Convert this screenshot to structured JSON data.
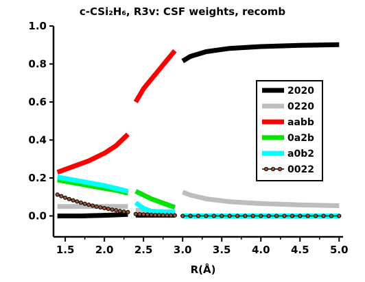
{
  "chart_data": {
    "type": "line",
    "title": "c-CSi₂H₆, R3v: CSF weights, recomb",
    "xlabel": "R(Å)",
    "ylabel": "",
    "xlim": [
      1.35,
      5.05
    ],
    "ylim": [
      -0.11,
      1.0
    ],
    "xticks": [
      1.5,
      2.0,
      2.5,
      3.0,
      3.5,
      4.0,
      4.5,
      5.0
    ],
    "xtick_labels": [
      "1.5",
      "2.0",
      "2.5",
      "3.0",
      "3.5",
      "4.0",
      "4.5",
      "5.0"
    ],
    "yticks": [
      0.0,
      0.2,
      0.4,
      0.6,
      0.8,
      1.0
    ],
    "ytick_labels": [
      "0.0",
      "0.2",
      "0.4",
      "0.6",
      "0.8",
      "1.0"
    ],
    "grid": false,
    "legend_position": "right",
    "series": [
      {
        "name": "2020",
        "color": "#000000",
        "segments": [
          [
            [
              1.4,
              0.0
            ],
            [
              1.7,
              0.0
            ],
            [
              2.0,
              0.003
            ],
            [
              2.3,
              0.008
            ]
          ],
          [
            [
              2.4,
              0.004
            ],
            [
              2.6,
              0.004
            ],
            [
              2.9,
              0.004
            ]
          ],
          [
            [
              3.0,
              0.815
            ],
            [
              3.1,
              0.84
            ],
            [
              3.3,
              0.865
            ],
            [
              3.6,
              0.882
            ],
            [
              4.0,
              0.892
            ],
            [
              4.5,
              0.898
            ],
            [
              5.0,
              0.902
            ]
          ]
        ]
      },
      {
        "name": "0220",
        "color": "#bdbdbd",
        "segments": [
          [
            [
              1.4,
              0.05
            ],
            [
              1.7,
              0.05
            ],
            [
              2.0,
              0.05
            ],
            [
              2.3,
              0.05
            ]
          ],
          [
            [
              2.4,
              0.03
            ],
            [
              2.6,
              0.025
            ],
            [
              2.9,
              0.02
            ]
          ],
          [
            [
              3.0,
              0.125
            ],
            [
              3.1,
              0.11
            ],
            [
              3.3,
              0.09
            ],
            [
              3.6,
              0.075
            ],
            [
              4.0,
              0.065
            ],
            [
              4.5,
              0.058
            ],
            [
              5.0,
              0.054
            ]
          ]
        ]
      },
      {
        "name": "aabb",
        "color": "#ff0000",
        "segments": [
          [
            [
              1.4,
              0.23
            ],
            [
              1.6,
              0.26
            ],
            [
              1.8,
              0.29
            ],
            [
              2.0,
              0.33
            ],
            [
              2.15,
              0.37
            ],
            [
              2.3,
              0.43
            ]
          ],
          [
            [
              2.4,
              0.6
            ],
            [
              2.5,
              0.67
            ],
            [
              2.6,
              0.72
            ],
            [
              2.7,
              0.77
            ],
            [
              2.8,
              0.82
            ],
            [
              2.9,
              0.87
            ]
          ]
        ]
      },
      {
        "name": "0a2b",
        "color": "#00e400",
        "segments": [
          [
            [
              1.4,
              0.19
            ],
            [
              1.6,
              0.175
            ],
            [
              1.8,
              0.16
            ],
            [
              2.0,
              0.145
            ],
            [
              2.15,
              0.135
            ],
            [
              2.3,
              0.12
            ]
          ],
          [
            [
              2.4,
              0.13
            ],
            [
              2.5,
              0.11
            ],
            [
              2.6,
              0.09
            ],
            [
              2.7,
              0.075
            ],
            [
              2.8,
              0.06
            ],
            [
              2.9,
              0.045
            ]
          ],
          [
            [
              3.0,
              0.0
            ],
            [
              4.0,
              0.0
            ],
            [
              5.0,
              0.0
            ]
          ]
        ]
      },
      {
        "name": "a0b2",
        "color": "#00ffff",
        "segments": [
          [
            [
              1.4,
              0.205
            ],
            [
              1.6,
              0.19
            ],
            [
              1.8,
              0.175
            ],
            [
              2.0,
              0.16
            ],
            [
              2.15,
              0.145
            ],
            [
              2.3,
              0.13
            ]
          ],
          [
            [
              2.4,
              0.07
            ],
            [
              2.5,
              0.04
            ],
            [
              2.6,
              0.025
            ],
            [
              2.75,
              0.02
            ],
            [
              2.9,
              0.02
            ]
          ],
          [
            [
              3.0,
              0.0
            ],
            [
              4.0,
              0.0
            ],
            [
              5.0,
              0.0
            ]
          ]
        ]
      },
      {
        "name": "0022",
        "color": "#000000",
        "marker_color": "#a0522d",
        "segments": [
          [
            [
              1.4,
              0.112
            ],
            [
              1.45,
              0.104
            ],
            [
              1.5,
              0.096
            ],
            [
              1.55,
              0.089
            ],
            [
              1.6,
              0.082
            ],
            [
              1.65,
              0.076
            ],
            [
              1.7,
              0.07
            ],
            [
              1.75,
              0.064
            ],
            [
              1.8,
              0.059
            ],
            [
              1.85,
              0.054
            ],
            [
              1.9,
              0.049
            ],
            [
              1.95,
              0.045
            ],
            [
              2.0,
              0.041
            ],
            [
              2.05,
              0.037
            ],
            [
              2.1,
              0.033
            ],
            [
              2.15,
              0.03
            ],
            [
              2.2,
              0.026
            ],
            [
              2.25,
              0.023
            ],
            [
              2.3,
              0.02
            ]
          ],
          [
            [
              2.4,
              0.01
            ],
            [
              2.45,
              0.009
            ],
            [
              2.5,
              0.008
            ],
            [
              2.55,
              0.007
            ],
            [
              2.6,
              0.006
            ],
            [
              2.65,
              0.005
            ],
            [
              2.7,
              0.005
            ],
            [
              2.75,
              0.004
            ],
            [
              2.8,
              0.004
            ],
            [
              2.85,
              0.003
            ],
            [
              2.9,
              0.003
            ]
          ],
          [
            [
              3.0,
              0.0
            ],
            [
              3.1,
              0.0
            ],
            [
              3.2,
              0.0
            ],
            [
              3.3,
              0.0
            ],
            [
              3.4,
              0.0
            ],
            [
              3.5,
              0.0
            ],
            [
              3.6,
              0.0
            ],
            [
              3.7,
              0.0
            ],
            [
              3.8,
              0.0
            ],
            [
              3.9,
              0.0
            ],
            [
              4.0,
              0.0
            ],
            [
              4.1,
              0.0
            ],
            [
              4.2,
              0.0
            ],
            [
              4.3,
              0.0
            ],
            [
              4.4,
              0.0
            ],
            [
              4.5,
              0.0
            ],
            [
              4.6,
              0.0
            ],
            [
              4.7,
              0.0
            ],
            [
              4.8,
              0.0
            ],
            [
              4.9,
              0.0
            ],
            [
              5.0,
              0.0
            ]
          ]
        ]
      }
    ]
  }
}
